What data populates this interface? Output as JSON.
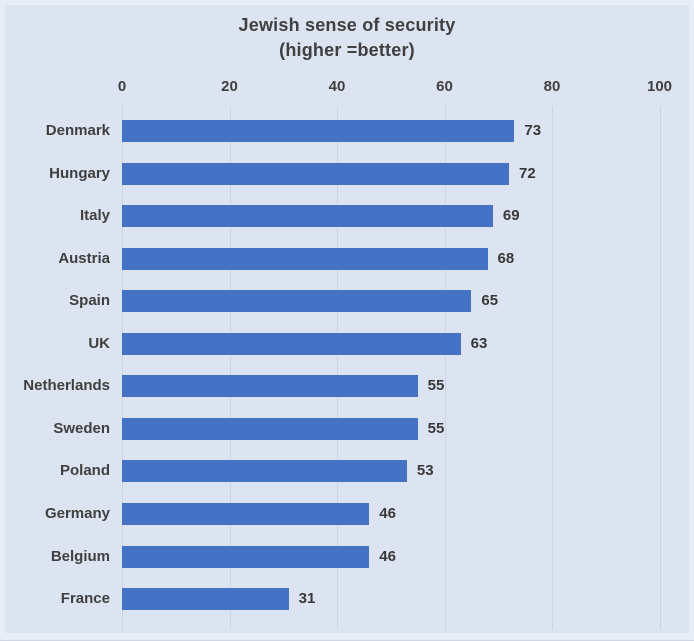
{
  "chart_data": {
    "type": "bar",
    "orientation": "horizontal",
    "title": "Jewish sense of security",
    "subtitle": "(higher =better)",
    "categories": [
      "Denmark",
      "Hungary",
      "Italy",
      "Austria",
      "Spain",
      "UK",
      "Netherlands",
      "Sweden",
      "Poland",
      "Germany",
      "Belgium",
      "France"
    ],
    "values": [
      73,
      72,
      69,
      68,
      65,
      63,
      55,
      55,
      53,
      46,
      46,
      31
    ],
    "xlabel": "",
    "ylabel": "",
    "xlim": [
      0,
      100
    ],
    "x_ticks": [
      0,
      20,
      40,
      60,
      80,
      100
    ],
    "axis_position": "top",
    "grid": true,
    "legend": "none",
    "data_labels": "outside-end",
    "colors": {
      "bar": "#4472c4",
      "background": "#dce3f1",
      "frame": "#e9edf8",
      "text": "#404040",
      "gridline": "#cbd3e4"
    }
  }
}
